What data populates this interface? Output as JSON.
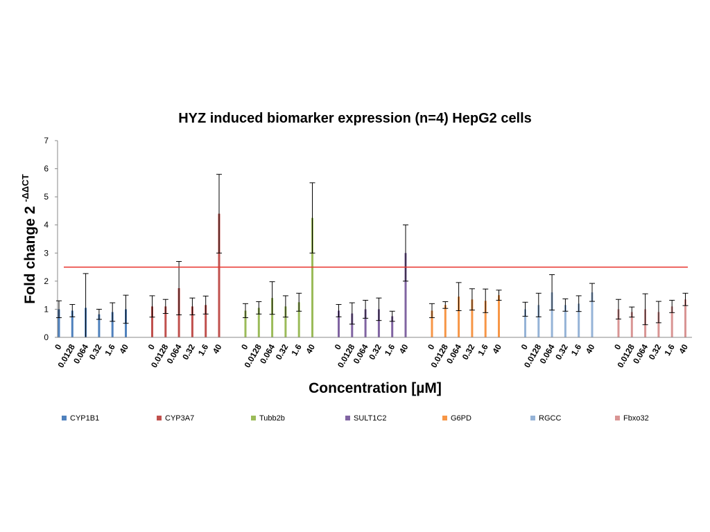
{
  "chart_data": {
    "type": "bar",
    "title": "HYZ induced biomarker expression (n=4) HepG2 cells",
    "xlabel": "Concentration [µM]",
    "ylabel": "Fold change 2",
    "ylabel_superscript": "-ΔΔCT",
    "ylim": [
      0,
      7
    ],
    "yticks": [
      "0",
      "1",
      "2",
      "3",
      "4",
      "5",
      "6",
      "7"
    ],
    "grid": false,
    "legend_position": "bottom",
    "categories": [
      "0",
      "0.0128",
      "0.064",
      "0.32",
      "1.6",
      "40"
    ],
    "reference_line": {
      "y": 2.5,
      "color": "#e8312a"
    },
    "series": [
      {
        "name": "CYP1B1",
        "color": "#4f81bd",
        "values": [
          1.0,
          0.95,
          1.05,
          0.82,
          0.9,
          1.0
        ],
        "errors": [
          0.3,
          0.22,
          1.22,
          0.18,
          0.33,
          0.5
        ]
      },
      {
        "name": "CYP3A7",
        "color": "#c0504d",
        "values": [
          1.1,
          1.1,
          1.75,
          1.1,
          1.15,
          4.4
        ],
        "errors": [
          0.38,
          0.25,
          0.95,
          0.3,
          0.32,
          1.4
        ]
      },
      {
        "name": "Tubb2b",
        "color": "#9bbb59",
        "values": [
          0.95,
          1.05,
          1.4,
          1.1,
          1.25,
          4.25
        ],
        "errors": [
          0.25,
          0.22,
          0.58,
          0.38,
          0.32,
          1.25
        ]
      },
      {
        "name": "SULT1C2",
        "color": "#8064a2",
        "values": [
          0.95,
          0.85,
          1.0,
          1.0,
          0.75,
          3.0
        ],
        "errors": [
          0.22,
          0.38,
          0.32,
          0.4,
          0.18,
          1.0
        ]
      },
      {
        "name": "G6PD",
        "color": "#f79646",
        "values": [
          0.95,
          1.15,
          1.45,
          1.35,
          1.3,
          1.5
        ],
        "errors": [
          0.25,
          0.12,
          0.5,
          0.38,
          0.42,
          0.18
        ]
      },
      {
        "name": "RGCC",
        "color": "#95b3d7",
        "values": [
          1.0,
          1.15,
          1.6,
          1.15,
          1.2,
          1.6
        ],
        "errors": [
          0.25,
          0.42,
          0.63,
          0.22,
          0.28,
          0.32
        ]
      },
      {
        "name": "Fbxo32",
        "color": "#d99594",
        "values": [
          1.0,
          0.9,
          1.0,
          0.9,
          1.1,
          1.35
        ],
        "errors": [
          0.35,
          0.18,
          0.55,
          0.38,
          0.22,
          0.22
        ]
      }
    ]
  }
}
